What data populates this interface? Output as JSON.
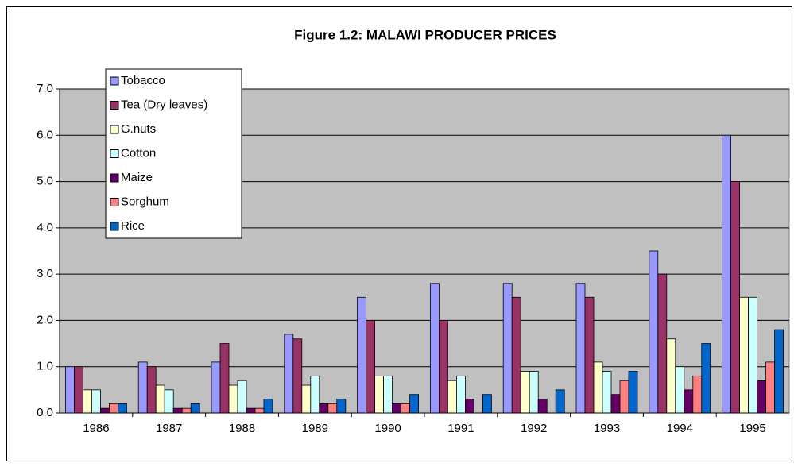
{
  "chart_data": {
    "type": "bar",
    "title": "Figure 1.2: MALAWI PRODUCER PRICES",
    "categories": [
      "1986",
      "1987",
      "1988",
      "1989",
      "1990",
      "1991",
      "1992",
      "1993",
      "1994",
      "1995"
    ],
    "series": [
      {
        "name": "Tobacco",
        "color": "#9999ff",
        "values": [
          1.0,
          1.1,
          1.1,
          1.7,
          2.5,
          2.8,
          2.8,
          2.8,
          3.5,
          6.0
        ]
      },
      {
        "name": "Tea (Dry leaves)",
        "color": "#993366",
        "values": [
          1.0,
          1.0,
          1.5,
          1.6,
          2.0,
          2.0,
          2.5,
          2.5,
          3.0,
          5.0
        ]
      },
      {
        "name": "G.nuts",
        "color": "#ffffcc",
        "values": [
          0.5,
          0.6,
          0.6,
          0.6,
          0.8,
          0.7,
          0.9,
          1.1,
          1.6,
          2.5
        ]
      },
      {
        "name": "Cotton",
        "color": "#ccffff",
        "values": [
          0.5,
          0.5,
          0.7,
          0.8,
          0.8,
          0.8,
          0.9,
          0.9,
          1.0,
          2.5
        ]
      },
      {
        "name": "Maize",
        "color": "#660066",
        "values": [
          0.1,
          0.1,
          0.1,
          0.2,
          0.2,
          0.3,
          0.3,
          0.4,
          0.5,
          0.7
        ]
      },
      {
        "name": "Sorghum",
        "color": "#ff8080",
        "values": [
          0.2,
          0.1,
          0.1,
          0.2,
          0.2,
          null,
          null,
          0.7,
          0.8,
          1.1
        ]
      },
      {
        "name": "Rice",
        "color": "#0066cc",
        "values": [
          0.2,
          0.2,
          0.3,
          0.3,
          0.4,
          0.4,
          0.5,
          0.9,
          1.5,
          1.8
        ]
      }
    ],
    "ylim": [
      0,
      7
    ],
    "yticks": [
      {
        "value": 0,
        "label": "0.0"
      },
      {
        "value": 1,
        "label": "1.0"
      },
      {
        "value": 2,
        "label": "2.0"
      },
      {
        "value": 3,
        "label": "3.0"
      },
      {
        "value": 4,
        "label": "4.0"
      },
      {
        "value": 5,
        "label": "5.0"
      },
      {
        "value": 6,
        "label": "6.0"
      },
      {
        "value": 7,
        "label": "7.0"
      }
    ],
    "grid": true,
    "legend": "upper left"
  }
}
